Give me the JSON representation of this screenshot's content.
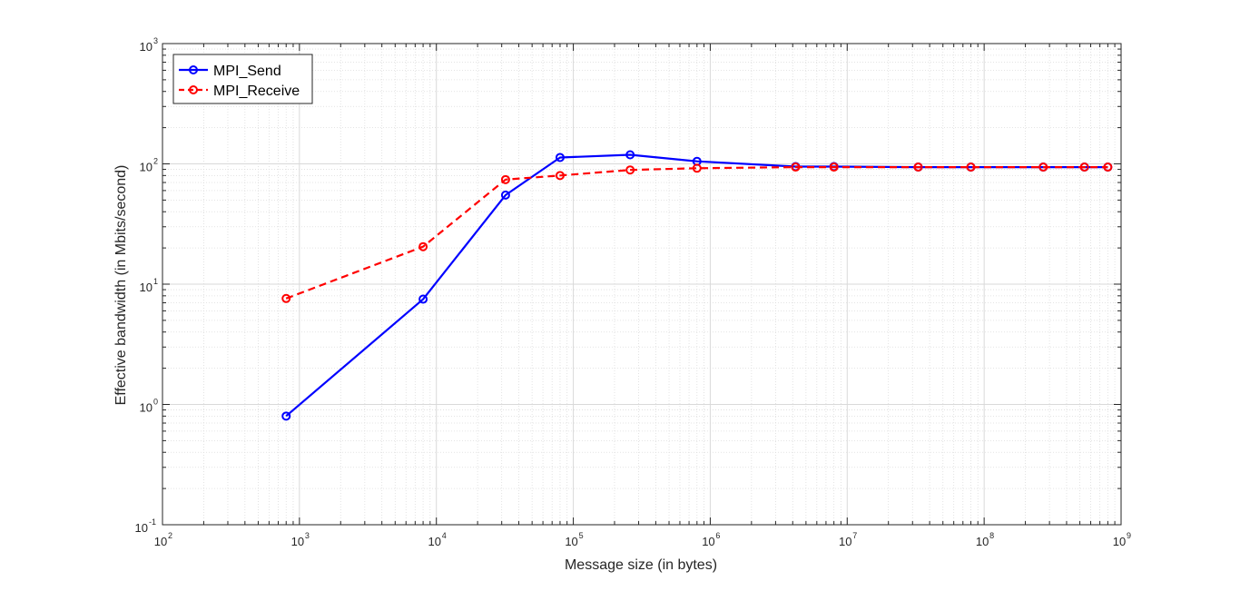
{
  "chart_data": {
    "type": "line",
    "title": "",
    "xlabel": "Message size (in bytes)",
    "ylabel": "Effective bandwidth (in Mbits/second)",
    "xscale": "log",
    "yscale": "log",
    "xlim": [
      100,
      1000000000
    ],
    "ylim": [
      0.1,
      1000
    ],
    "xticks": [
      {
        "value": 100,
        "label": "10",
        "exp": "2"
      },
      {
        "value": 1000,
        "label": "10",
        "exp": "3"
      },
      {
        "value": 10000,
        "label": "10",
        "exp": "4"
      },
      {
        "value": 100000,
        "label": "10",
        "exp": "5"
      },
      {
        "value": 1000000,
        "label": "10",
        "exp": "6"
      },
      {
        "value": 10000000,
        "label": "10",
        "exp": "7"
      },
      {
        "value": 100000000,
        "label": "10",
        "exp": "8"
      },
      {
        "value": 1000000000,
        "label": "10",
        "exp": "9"
      }
    ],
    "yticks": [
      {
        "value": 0.1,
        "label": "10",
        "exp": "-1"
      },
      {
        "value": 1,
        "label": "10",
        "exp": "0"
      },
      {
        "value": 10,
        "label": "10",
        "exp": "1"
      },
      {
        "value": 100,
        "label": "10",
        "exp": "2"
      },
      {
        "value": 1000,
        "label": "10",
        "exp": "3"
      }
    ],
    "grid": true,
    "minor_grid": true,
    "legend_position": "top-left",
    "series": [
      {
        "name": "MPI_Send",
        "color": "#0000ff",
        "line_style": "solid",
        "marker": "circle",
        "x": [
          800,
          8000,
          32000,
          80000,
          260000,
          800000,
          4200000,
          8000000,
          33000000,
          80000000,
          270000000,
          540000000,
          800000000
        ],
        "y": [
          0.8,
          7.5,
          55,
          113,
          119,
          105,
          95,
          95,
          94,
          94,
          94,
          94,
          94
        ]
      },
      {
        "name": "MPI_Receive",
        "color": "#ff0000",
        "line_style": "dashed",
        "marker": "circle",
        "x": [
          800,
          8000,
          32000,
          80000,
          260000,
          800000,
          4200000,
          8000000,
          33000000,
          80000000,
          270000000,
          540000000,
          800000000
        ],
        "y": [
          7.6,
          20.5,
          74,
          80,
          89,
          92,
          94,
          94,
          94,
          94,
          94,
          94,
          94
        ]
      }
    ]
  }
}
